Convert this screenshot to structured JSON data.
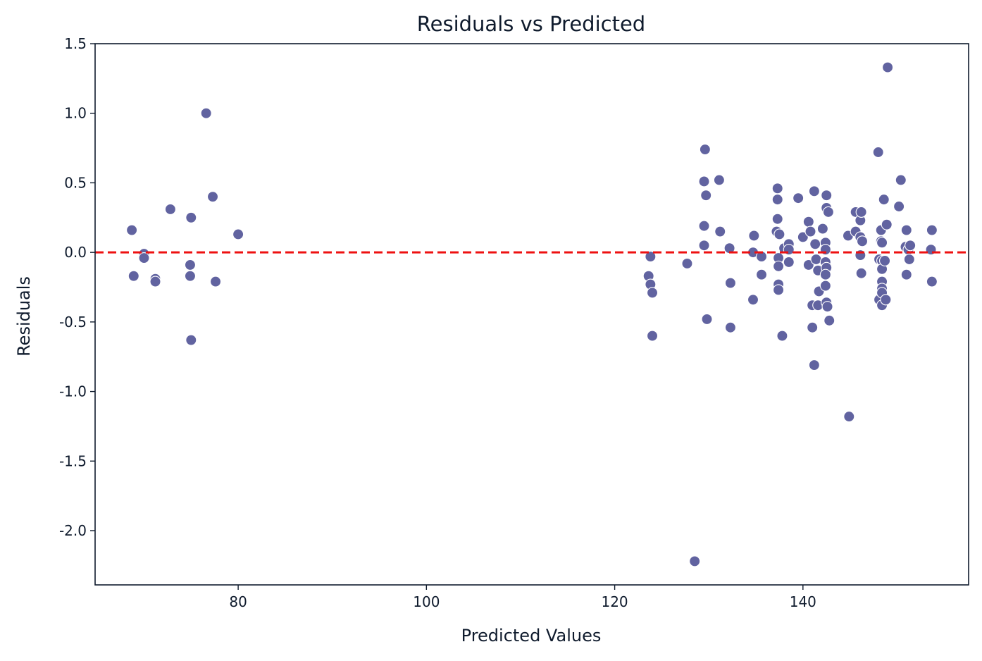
{
  "chart_data": {
    "type": "scatter",
    "title": "Residuals vs Predicted",
    "xlabel": "Predicted Values",
    "ylabel": "Residuals",
    "xlim": [
      64.8,
      157.6
    ],
    "ylim": [
      -2.39,
      1.5
    ],
    "x_ticks": [
      80,
      100,
      120,
      140
    ],
    "y_ticks": [
      1.5,
      1.0,
      0.5,
      0.0,
      -0.5,
      -1.0,
      -1.5,
      -2.0
    ],
    "x_tick_labels": [
      "80",
      "100",
      "120",
      "140"
    ],
    "y_tick_labels": [
      "1.5",
      "1.0",
      "0.5",
      "0.0",
      "-0.5",
      "-1.0",
      "-1.5",
      "-2.0"
    ],
    "reference_line": {
      "y": 0,
      "style": "dashed",
      "color": "#ee1111"
    },
    "grid": false,
    "marker_color": "#6163a0",
    "points": [
      [
        68.7,
        0.16
      ],
      [
        68.9,
        -0.17
      ],
      [
        70.0,
        -0.01
      ],
      [
        70.0,
        -0.04
      ],
      [
        71.2,
        -0.19
      ],
      [
        71.2,
        -0.21
      ],
      [
        72.8,
        0.31
      ],
      [
        75.0,
        0.25
      ],
      [
        74.9,
        -0.09
      ],
      [
        74.9,
        -0.17
      ],
      [
        75.0,
        -0.63
      ],
      [
        76.6,
        1.0
      ],
      [
        77.3,
        0.4
      ],
      [
        77.6,
        -0.21
      ],
      [
        80.0,
        0.13
      ],
      [
        123.6,
        -0.17
      ],
      [
        123.8,
        -0.03
      ],
      [
        123.8,
        -0.23
      ],
      [
        124.0,
        -0.29
      ],
      [
        124.0,
        -0.6
      ],
      [
        127.7,
        -0.08
      ],
      [
        128.5,
        -2.22
      ],
      [
        129.5,
        0.51
      ],
      [
        129.5,
        0.19
      ],
      [
        129.5,
        0.05
      ],
      [
        129.6,
        0.74
      ],
      [
        129.7,
        0.41
      ],
      [
        129.8,
        -0.48
      ],
      [
        131.1,
        0.52
      ],
      [
        131.2,
        0.15
      ],
      [
        132.2,
        0.03
      ],
      [
        132.3,
        -0.22
      ],
      [
        132.3,
        -0.54
      ],
      [
        134.7,
        0.0
      ],
      [
        134.8,
        0.12
      ],
      [
        134.7,
        -0.34
      ],
      [
        135.6,
        -0.03
      ],
      [
        135.6,
        -0.16
      ],
      [
        137.3,
        0.46
      ],
      [
        137.3,
        0.38
      ],
      [
        137.3,
        0.24
      ],
      [
        137.2,
        0.15
      ],
      [
        137.5,
        0.13
      ],
      [
        137.4,
        -0.04
      ],
      [
        137.4,
        -0.1
      ],
      [
        137.4,
        -0.23
      ],
      [
        137.4,
        -0.27
      ],
      [
        137.8,
        -0.6
      ],
      [
        138.0,
        0.03
      ],
      [
        138.5,
        0.06
      ],
      [
        138.5,
        0.02
      ],
      [
        138.5,
        -0.07
      ],
      [
        139.5,
        0.39
      ],
      [
        140.0,
        0.11
      ],
      [
        140.6,
        0.22
      ],
      [
        140.8,
        0.15
      ],
      [
        140.6,
        -0.09
      ],
      [
        141.0,
        -0.38
      ],
      [
        141.0,
        -0.54
      ],
      [
        141.2,
        0.44
      ],
      [
        141.2,
        -0.81
      ],
      [
        141.3,
        0.06
      ],
      [
        141.4,
        -0.05
      ],
      [
        141.6,
        -0.13
      ],
      [
        141.7,
        -0.28
      ],
      [
        141.6,
        -0.38
      ],
      [
        142.1,
        0.17
      ],
      [
        142.5,
        0.41
      ],
      [
        142.5,
        0.32
      ],
      [
        142.7,
        0.29
      ],
      [
        142.4,
        0.07
      ],
      [
        142.4,
        0.02
      ],
      [
        142.4,
        -0.07
      ],
      [
        142.5,
        -0.11
      ],
      [
        142.4,
        -0.16
      ],
      [
        142.4,
        -0.24
      ],
      [
        142.5,
        -0.36
      ],
      [
        142.6,
        -0.39
      ],
      [
        142.8,
        -0.49
      ],
      [
        144.8,
        0.12
      ],
      [
        144.9,
        -1.18
      ],
      [
        145.6,
        0.29
      ],
      [
        145.6,
        0.15
      ],
      [
        146.1,
        0.23
      ],
      [
        146.2,
        0.29
      ],
      [
        146.1,
        0.11
      ],
      [
        146.3,
        0.08
      ],
      [
        146.1,
        -0.02
      ],
      [
        146.2,
        -0.15
      ],
      [
        148.0,
        0.72
      ],
      [
        148.1,
        -0.05
      ],
      [
        148.1,
        -0.34
      ],
      [
        148.3,
        0.16
      ],
      [
        148.3,
        0.08
      ],
      [
        148.4,
        0.07
      ],
      [
        148.4,
        -0.06
      ],
      [
        148.4,
        -0.12
      ],
      [
        148.4,
        -0.21
      ],
      [
        148.4,
        -0.26
      ],
      [
        148.4,
        -0.29
      ],
      [
        148.4,
        -0.38
      ],
      [
        148.6,
        0.38
      ],
      [
        148.7,
        -0.06
      ],
      [
        148.8,
        -0.34
      ],
      [
        148.9,
        0.2
      ],
      [
        149.0,
        1.33
      ],
      [
        150.2,
        0.33
      ],
      [
        150.4,
        0.52
      ],
      [
        151.0,
        0.16
      ],
      [
        150.9,
        0.04
      ],
      [
        151.2,
        0.02
      ],
      [
        151.4,
        0.05
      ],
      [
        151.3,
        -0.05
      ],
      [
        151.0,
        -0.16
      ],
      [
        153.7,
        0.16
      ],
      [
        153.6,
        0.02
      ],
      [
        153.7,
        -0.21
      ]
    ]
  }
}
